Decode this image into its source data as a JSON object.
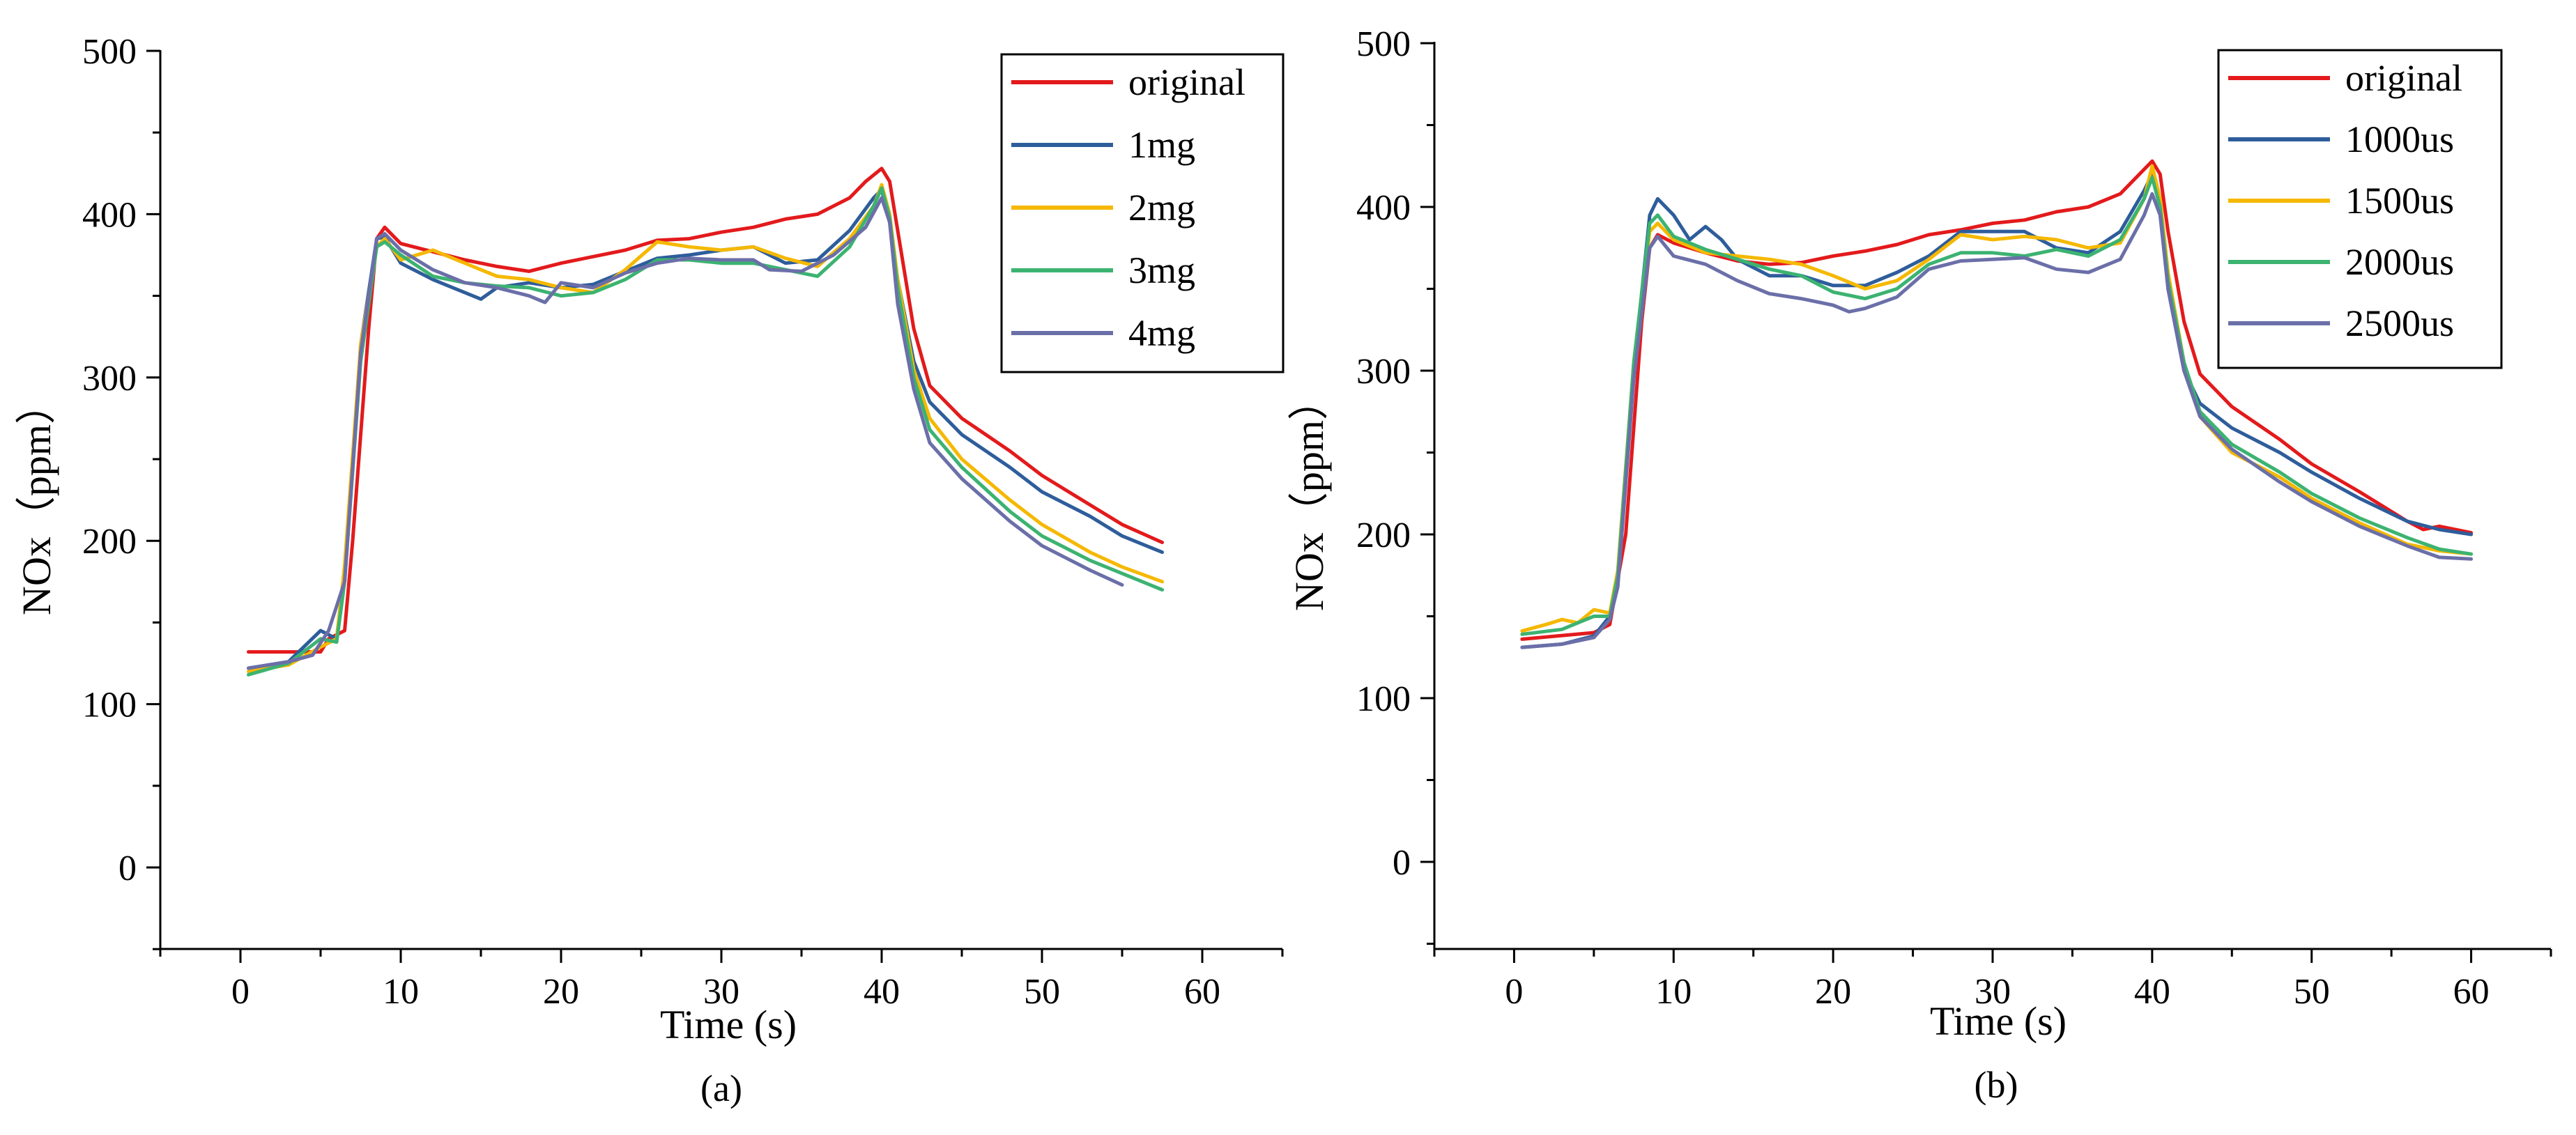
{
  "chart_data": [
    {
      "type": "line",
      "panel": "a",
      "caption": "(a)",
      "title": "",
      "xlabel": "Time (s)",
      "ylabel": "NOx（ppm）",
      "xlim": [
        -5,
        65
      ],
      "ylim": [
        -50,
        500
      ],
      "xticks": [
        0,
        10,
        20,
        30,
        40,
        50,
        60
      ],
      "yticks": [
        0,
        100,
        200,
        300,
        400,
        500
      ],
      "grid": false,
      "legend_position": "top-right",
      "series": [
        {
          "name": "original",
          "color": "#e31a1c",
          "x": [
            0.5,
            5,
            5.5,
            6.5,
            7,
            8,
            8.5,
            9,
            10,
            12,
            14,
            16,
            18,
            20,
            22,
            24,
            26,
            28,
            30,
            32,
            34,
            36,
            38,
            39,
            40,
            40.5,
            41,
            42,
            43,
            45,
            48,
            50,
            53,
            55,
            57.5
          ],
          "y": [
            132,
            132,
            140,
            145,
            200,
            330,
            385,
            392,
            382,
            377,
            372,
            368,
            365,
            370,
            374,
            378,
            384,
            385,
            389,
            392,
            397,
            400,
            410,
            420,
            428,
            420,
            390,
            330,
            295,
            275,
            255,
            240,
            222,
            210,
            199
          ]
        },
        {
          "name": "1mg",
          "color": "#2e5d9b",
          "x": [
            0.5,
            3,
            5,
            6,
            6.5,
            7.5,
            8.5,
            9,
            10,
            12,
            14,
            15,
            16,
            18,
            20,
            22,
            24,
            26,
            28,
            30,
            32,
            34,
            36,
            38,
            39.5,
            40,
            40.5,
            41,
            42,
            43,
            45,
            48,
            50,
            53,
            55,
            57.5
          ],
          "y": [
            122,
            126,
            145,
            140,
            180,
            320,
            385,
            386,
            370,
            360,
            352,
            348,
            355,
            358,
            355,
            357,
            365,
            373,
            375,
            378,
            380,
            370,
            372,
            390,
            410,
            415,
            395,
            360,
            310,
            285,
            265,
            245,
            230,
            215,
            203,
            193
          ]
        },
        {
          "name": "2mg",
          "color": "#f5b800",
          "x": [
            0.5,
            3,
            5,
            6,
            6.5,
            7.5,
            8.5,
            9,
            10,
            12,
            14,
            16,
            18,
            20,
            22,
            24,
            26,
            28,
            30,
            32,
            34,
            36,
            38,
            39.5,
            40,
            40.5,
            41,
            42,
            43,
            45,
            48,
            50,
            53,
            55,
            57.5
          ],
          "y": [
            120,
            124,
            135,
            140,
            185,
            320,
            380,
            385,
            372,
            378,
            370,
            362,
            360,
            355,
            352,
            366,
            383,
            380,
            378,
            380,
            373,
            368,
            385,
            405,
            418,
            400,
            360,
            305,
            275,
            250,
            225,
            210,
            193,
            184,
            175
          ]
        },
        {
          "name": "3mg",
          "color": "#3cb371",
          "x": [
            0.5,
            3,
            5,
            6,
            6.5,
            7.5,
            8.5,
            9,
            10,
            12,
            14,
            16,
            18,
            20,
            22,
            24,
            26,
            28,
            30,
            32,
            34,
            36,
            38,
            39.5,
            40,
            40.5,
            41,
            42,
            43,
            45,
            48,
            50,
            53,
            55,
            57.5
          ],
          "y": [
            118,
            125,
            140,
            138,
            175,
            310,
            380,
            383,
            375,
            362,
            358,
            356,
            355,
            350,
            352,
            360,
            372,
            372,
            370,
            370,
            366,
            362,
            380,
            405,
            416,
            398,
            355,
            300,
            268,
            245,
            218,
            203,
            188,
            180,
            170
          ]
        },
        {
          "name": "4mg",
          "color": "#6b6fa8",
          "x": [
            0.5,
            3,
            4.5,
            5.5,
            6.5,
            7.5,
            8.5,
            9,
            10,
            12,
            14,
            16,
            18,
            19,
            20,
            22,
            24,
            26,
            28,
            30,
            32,
            33,
            35,
            37,
            39,
            40,
            40.5,
            41,
            42,
            43,
            45,
            48,
            50,
            53,
            55
          ],
          "y": [
            122,
            126,
            130,
            145,
            175,
            315,
            385,
            388,
            378,
            366,
            358,
            355,
            350,
            346,
            358,
            355,
            364,
            370,
            373,
            372,
            372,
            366,
            365,
            375,
            392,
            410,
            395,
            345,
            293,
            260,
            238,
            212,
            197,
            182,
            173
          ]
        }
      ]
    },
    {
      "type": "line",
      "panel": "b",
      "caption": "(b)",
      "title": "",
      "xlabel": "Time (s)",
      "ylabel": "NOx（ppm）",
      "xlim": [
        -5,
        65
      ],
      "ylim": [
        -50,
        500
      ],
      "xticks": [
        0,
        10,
        20,
        30,
        40,
        50,
        60
      ],
      "yticks": [
        0,
        100,
        200,
        300,
        400,
        500
      ],
      "grid": false,
      "legend_position": "top-right",
      "series": [
        {
          "name": "original",
          "color": "#e31a1c",
          "x": [
            0.5,
            5,
            6,
            7,
            8,
            8.5,
            9,
            10,
            12,
            14,
            16,
            18,
            20,
            22,
            24,
            26,
            28,
            30,
            32,
            34,
            36,
            38,
            39,
            40,
            40.5,
            41,
            42,
            43,
            45,
            48,
            50,
            53,
            56,
            57,
            58,
            60
          ],
          "y": [
            136,
            140,
            145,
            200,
            330,
            375,
            383,
            378,
            372,
            367,
            365,
            366,
            370,
            373,
            377,
            383,
            386,
            390,
            392,
            397,
            400,
            408,
            418,
            428,
            420,
            385,
            330,
            298,
            278,
            258,
            243,
            226,
            208,
            203,
            205,
            201
          ]
        },
        {
          "name": "1000us",
          "color": "#2e5d9b",
          "x": [
            0.5,
            3,
            5,
            6,
            6.5,
            7.5,
            8.5,
            9,
            10,
            11,
            12,
            13,
            14,
            16,
            18,
            20,
            22,
            24,
            26,
            28,
            30,
            32,
            34,
            36,
            38,
            39.5,
            40,
            40.5,
            41,
            42,
            43,
            45,
            48,
            50,
            53,
            56,
            58,
            60
          ],
          "y": [
            131,
            133,
            138,
            150,
            175,
            300,
            395,
            405,
            395,
            380,
            388,
            380,
            368,
            358,
            358,
            352,
            352,
            360,
            370,
            385,
            385,
            385,
            375,
            372,
            385,
            410,
            420,
            400,
            350,
            300,
            280,
            265,
            250,
            238,
            222,
            208,
            203,
            200
          ]
        },
        {
          "name": "1500us",
          "color": "#f5b800",
          "x": [
            0.5,
            2,
            3,
            4,
            5,
            6,
            6.5,
            7.5,
            8.5,
            9,
            10,
            12,
            14,
            16,
            18,
            20,
            22,
            24,
            26,
            28,
            30,
            32,
            34,
            36,
            38,
            39.5,
            40,
            40.5,
            41,
            42,
            43,
            45,
            48,
            50,
            53,
            56,
            58,
            60
          ],
          "y": [
            141,
            145,
            148,
            146,
            154,
            152,
            178,
            305,
            385,
            390,
            380,
            372,
            370,
            368,
            365,
            358,
            350,
            355,
            368,
            383,
            380,
            382,
            380,
            375,
            378,
            405,
            425,
            405,
            360,
            305,
            272,
            250,
            235,
            222,
            207,
            194,
            190,
            188
          ]
        },
        {
          "name": "2000us",
          "color": "#3cb371",
          "x": [
            0.5,
            3,
            5,
            6,
            6.5,
            7.5,
            8.5,
            9,
            10,
            12,
            14,
            16,
            18,
            20,
            22,
            24,
            26,
            28,
            30,
            32,
            34,
            36,
            38,
            39.5,
            40,
            40.5,
            41,
            42,
            43,
            45,
            48,
            50,
            53,
            56,
            58,
            60
          ],
          "y": [
            139,
            142,
            150,
            150,
            175,
            305,
            390,
            395,
            382,
            374,
            368,
            362,
            358,
            348,
            344,
            350,
            365,
            372,
            372,
            370,
            374,
            370,
            380,
            405,
            418,
            400,
            355,
            305,
            275,
            255,
            238,
            225,
            210,
            198,
            191,
            188
          ]
        },
        {
          "name": "2500us",
          "color": "#6b6fa8",
          "x": [
            0.5,
            3,
            5,
            6,
            6.5,
            7.5,
            8.5,
            9,
            10,
            12,
            14,
            16,
            18,
            20,
            21,
            22,
            24,
            26,
            28,
            30,
            32,
            34,
            36,
            38,
            39.5,
            40,
            40.5,
            41,
            42,
            43,
            45,
            48,
            50,
            53,
            56,
            58,
            60
          ],
          "y": [
            131,
            133,
            137,
            148,
            168,
            295,
            375,
            382,
            370,
            365,
            355,
            347,
            344,
            340,
            336,
            338,
            345,
            362,
            367,
            368,
            369,
            362,
            360,
            368,
            395,
            408,
            395,
            350,
            300,
            272,
            252,
            232,
            220,
            205,
            193,
            186,
            185
          ]
        }
      ]
    }
  ]
}
